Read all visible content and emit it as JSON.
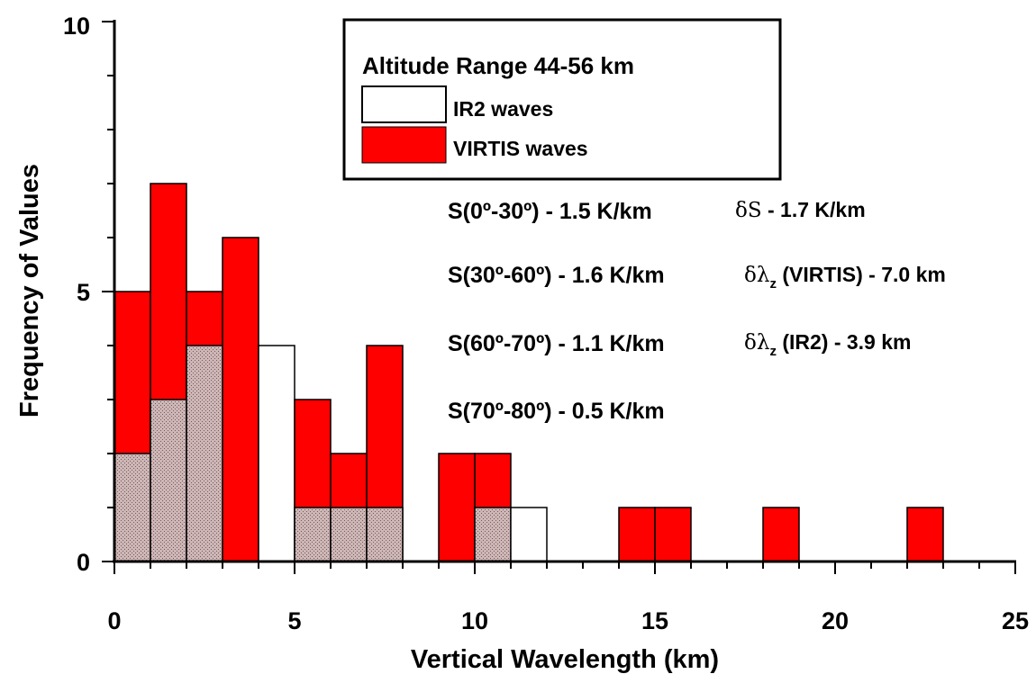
{
  "chart_data": {
    "type": "bar",
    "subtype": "overlaid-histogram",
    "bin_width": 1,
    "bins_start": [
      0,
      1,
      2,
      3,
      4,
      5,
      6,
      7,
      8,
      9,
      10,
      11,
      12,
      13,
      14,
      15,
      16,
      17,
      18,
      19,
      20,
      21,
      22,
      23,
      24
    ],
    "series": [
      {
        "name": "VIRTIS waves",
        "color": "#ff0000",
        "values": [
          5,
          7,
          5,
          6,
          0,
          3,
          2,
          4,
          0,
          2,
          2,
          0,
          0,
          0,
          1,
          1,
          0,
          0,
          1,
          0,
          0,
          0,
          1,
          0,
          0
        ]
      },
      {
        "name": "IR2 waves",
        "color": "#ffffff",
        "values": [
          2,
          3,
          4,
          0,
          4,
          1,
          1,
          1,
          0,
          0,
          1,
          1,
          0,
          0,
          0,
          0,
          0,
          0,
          0,
          0,
          0,
          0,
          0,
          0,
          0
        ]
      }
    ],
    "overlap_fill": "#cdb5b5",
    "xlabel": "Vertical Wavelength (km)",
    "ylabel": "Frequency of Values",
    "xlim": [
      0,
      25
    ],
    "ylim": [
      0,
      10
    ],
    "x_ticks": [
      "0",
      "5",
      "10",
      "15",
      "20",
      "25"
    ],
    "x_tick_values": [
      0,
      5,
      10,
      15,
      20,
      25
    ],
    "y_ticks": [
      "0",
      "5",
      "10"
    ],
    "y_tick_values": [
      0,
      5,
      10
    ],
    "grid": false,
    "legend": {
      "title": "Altitude Range 44-56 km",
      "placement": "top-center",
      "entries": [
        {
          "label": "IR2 waves",
          "color": "#ffffff"
        },
        {
          "label": "VIRTIS waves",
          "color": "#ff0000"
        }
      ]
    },
    "annotations": {
      "left": [
        "S(0º-30º) - 1.5 K/km",
        "S(30º-60º) - 1.6 K/km",
        "S(60º-70º) - 1.1 K/km",
        "S(70º-80º) - 0.5 K/km"
      ],
      "right": [
        {
          "greek": "δS",
          "sub": "",
          "text": " - 1.7 K/km"
        },
        {
          "greek": "δλ",
          "sub": "z",
          "text": " (VIRTIS) - 7.0 km"
        },
        {
          "greek": "δλ",
          "sub": "z",
          "text": " (IR2) - 3.9 km"
        }
      ]
    }
  }
}
